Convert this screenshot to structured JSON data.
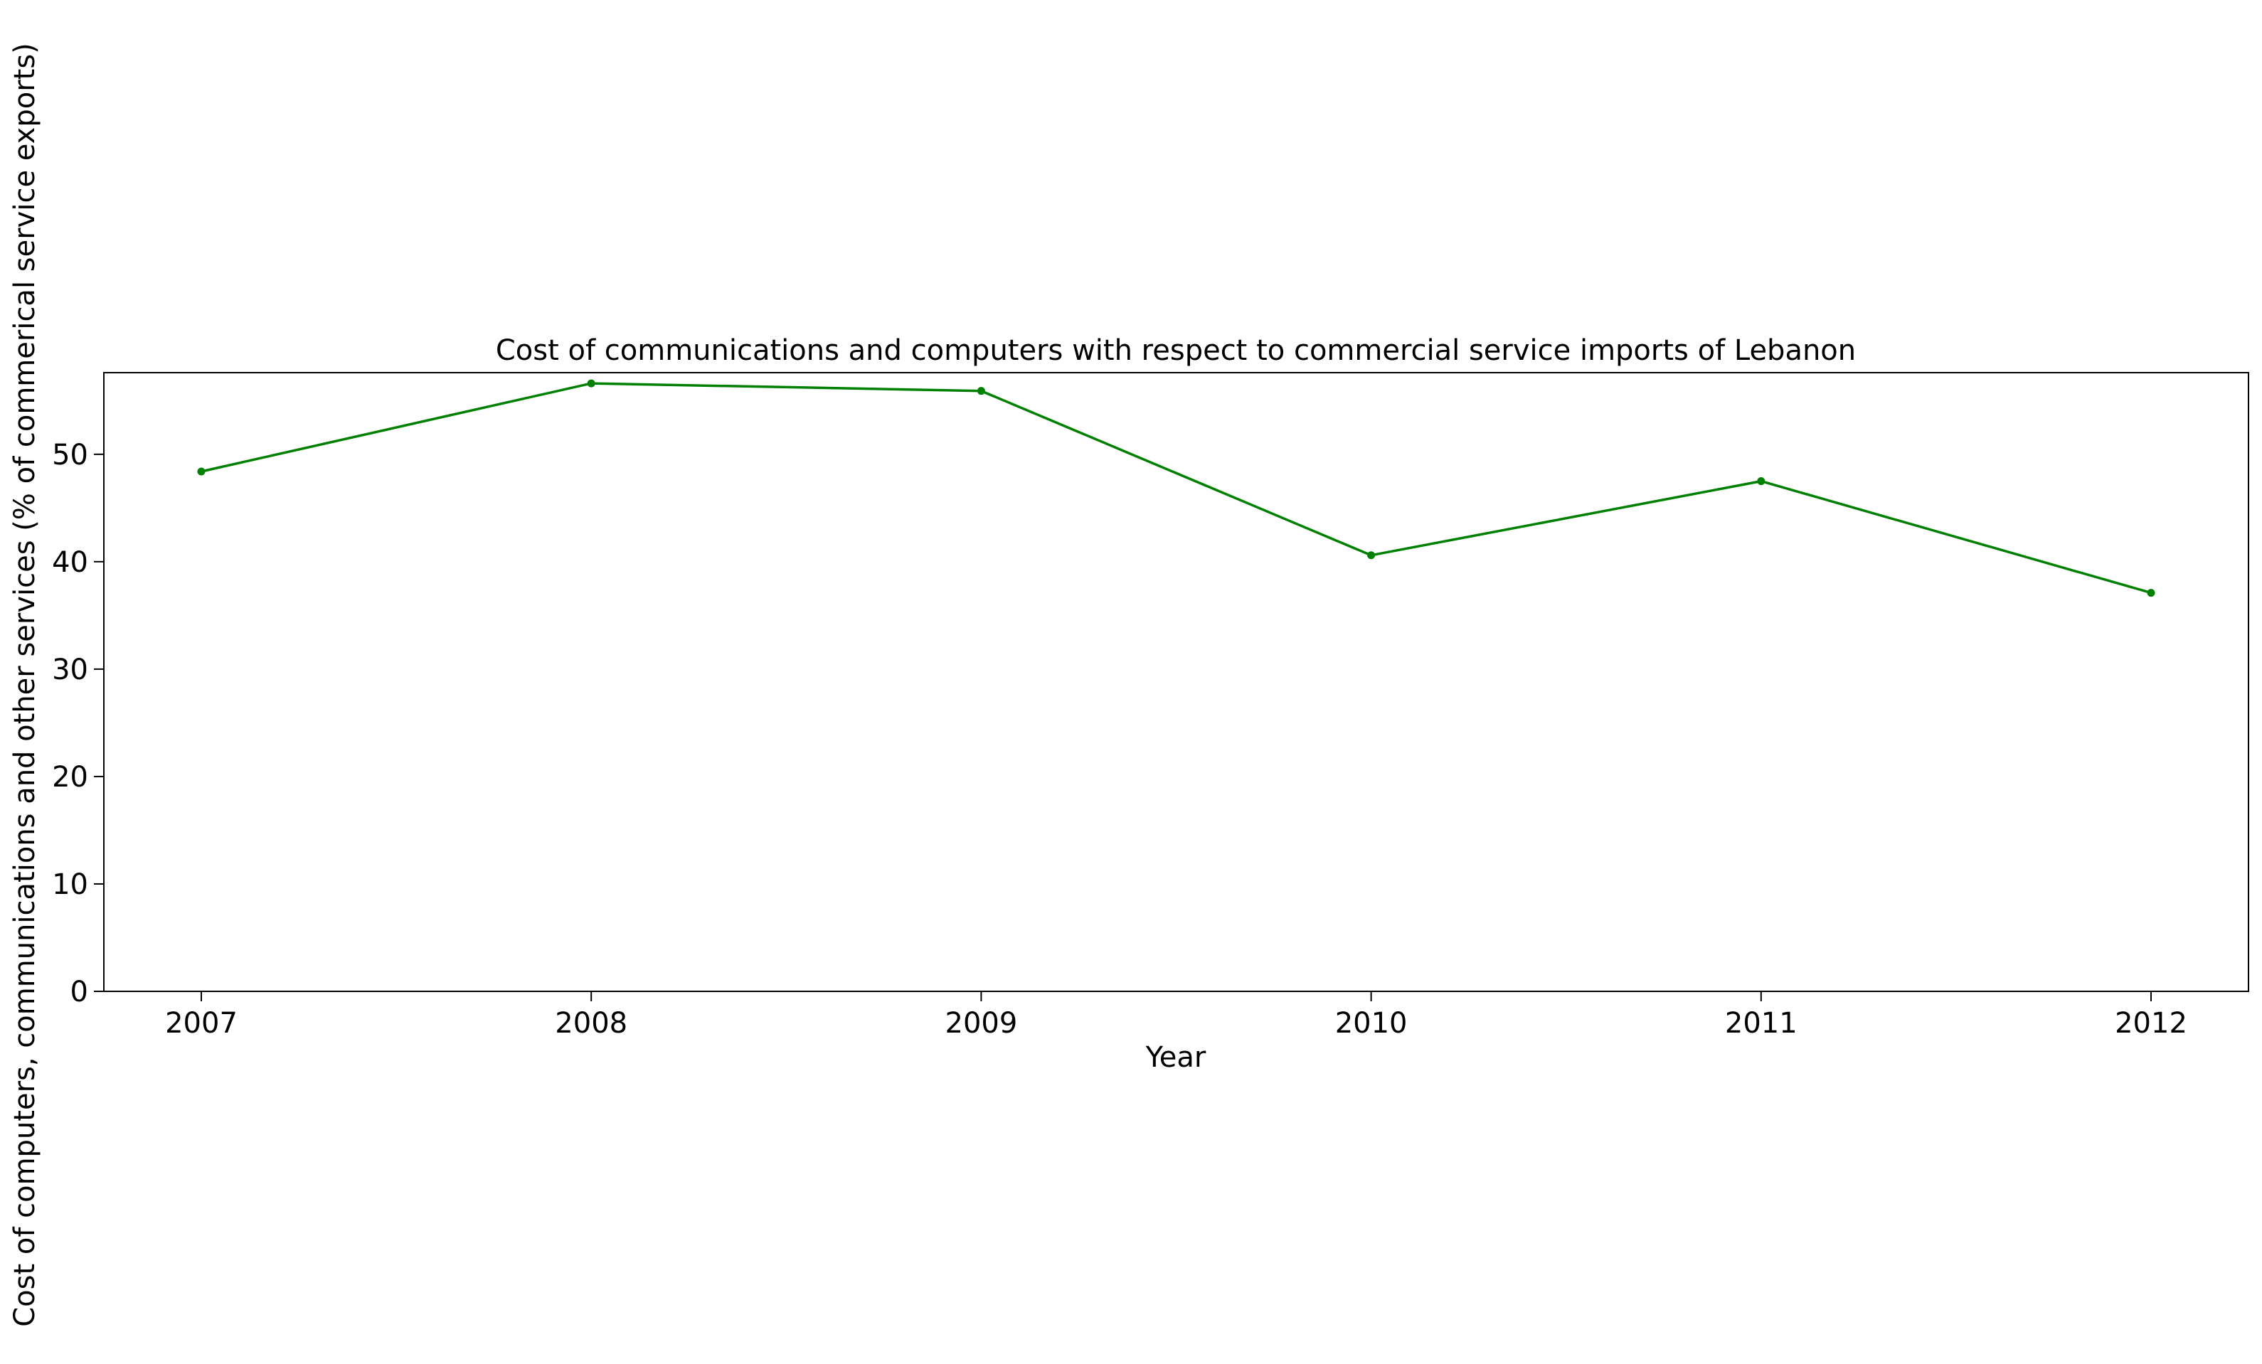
{
  "chart_data": {
    "type": "line",
    "title": "Cost of communications and computers with respect to commercial service imports of Lebanon",
    "xlabel": "Year",
    "ylabel": "Cost of computers, communications and other services (% of commerical service exports)",
    "x": [
      "2007",
      "2008",
      "2009",
      "2010",
      "2011",
      "2012"
    ],
    "series": [
      {
        "values": [
          48.4,
          56.6,
          55.9,
          40.6,
          47.5,
          37.1
        ],
        "color": "#008000",
        "marker": "circle"
      }
    ],
    "ylim": [
      0,
      57.6
    ],
    "yticks": [
      "0",
      "10",
      "20",
      "30",
      "40",
      "50"
    ],
    "grid": false,
    "legend": "none"
  }
}
